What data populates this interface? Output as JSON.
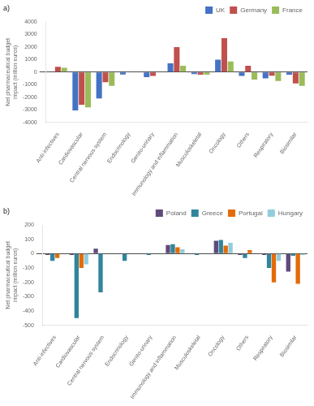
{
  "chart_data": [
    {
      "type": "bar",
      "annotations": [
        "a)"
      ],
      "ylabel": "Net pharmaceutical budget impact (million euros)",
      "categories": [
        "Anti-infectives",
        "Cardiovascular",
        "Central nervous system",
        "Endocrinology",
        "Genito-urinary",
        "Immunology and inflammation",
        "Musculoskeletal",
        "Oncology",
        "Others",
        "Respiratory",
        "Biosimilar"
      ],
      "series": [
        {
          "name": "UK",
          "color": "#4472c4",
          "values": [
            0,
            -3050,
            -2100,
            -180,
            -400,
            700,
            -150,
            1000,
            -300,
            -500,
            -200
          ]
        },
        {
          "name": "Germany",
          "color": "#c0504d",
          "values": [
            420,
            -2600,
            -800,
            0,
            -300,
            2000,
            -200,
            2700,
            500,
            -280,
            -900
          ]
        },
        {
          "name": "France",
          "color": "#9bbb59",
          "values": [
            350,
            -2800,
            -1100,
            0,
            0,
            500,
            -200,
            850,
            -600,
            -700,
            -1100
          ]
        }
      ],
      "ylim": [
        -4000,
        4000
      ],
      "yticks": [
        -4000,
        -3000,
        -2000,
        -1000,
        0,
        1000,
        2000,
        3000,
        4000
      ],
      "legend": "upper right",
      "grid": false
    },
    {
      "type": "bar",
      "annotations": [
        "b)"
      ],
      "ylabel": "Net pharmaceutical budget impact (million euros)",
      "categories": [
        "Anti-infectives",
        "Cardiovascular",
        "Central nervous system",
        "Endocrinology",
        "Genito-urinary",
        "Immunology and inflammation",
        "Musculoskeletal",
        "Oncology",
        "Others",
        "Respiratory",
        "Biosimilar"
      ],
      "series": [
        {
          "name": "Poland",
          "color": "#604a7b",
          "values": [
            -10,
            -10,
            35,
            0,
            0,
            60,
            0,
            90,
            -10,
            -10,
            -125
          ]
        },
        {
          "name": "Greece",
          "color": "#31849b",
          "values": [
            -50,
            -450,
            -270,
            -50,
            -10,
            65,
            -10,
            95,
            -30,
            -100,
            -15
          ]
        },
        {
          "name": "Portugal",
          "color": "#e36c09",
          "values": [
            -30,
            -100,
            0,
            0,
            0,
            45,
            0,
            55,
            25,
            -200,
            -210
          ]
        },
        {
          "name": "Hungary",
          "color": "#92cddc",
          "values": [
            0,
            -75,
            0,
            0,
            0,
            30,
            0,
            75,
            0,
            -50,
            -10
          ]
        }
      ],
      "ylim": [
        -500,
        200
      ],
      "yticks": [
        -500,
        -400,
        -300,
        -200,
        -100,
        0,
        100,
        200
      ],
      "legend": "upper right",
      "grid": false
    }
  ]
}
